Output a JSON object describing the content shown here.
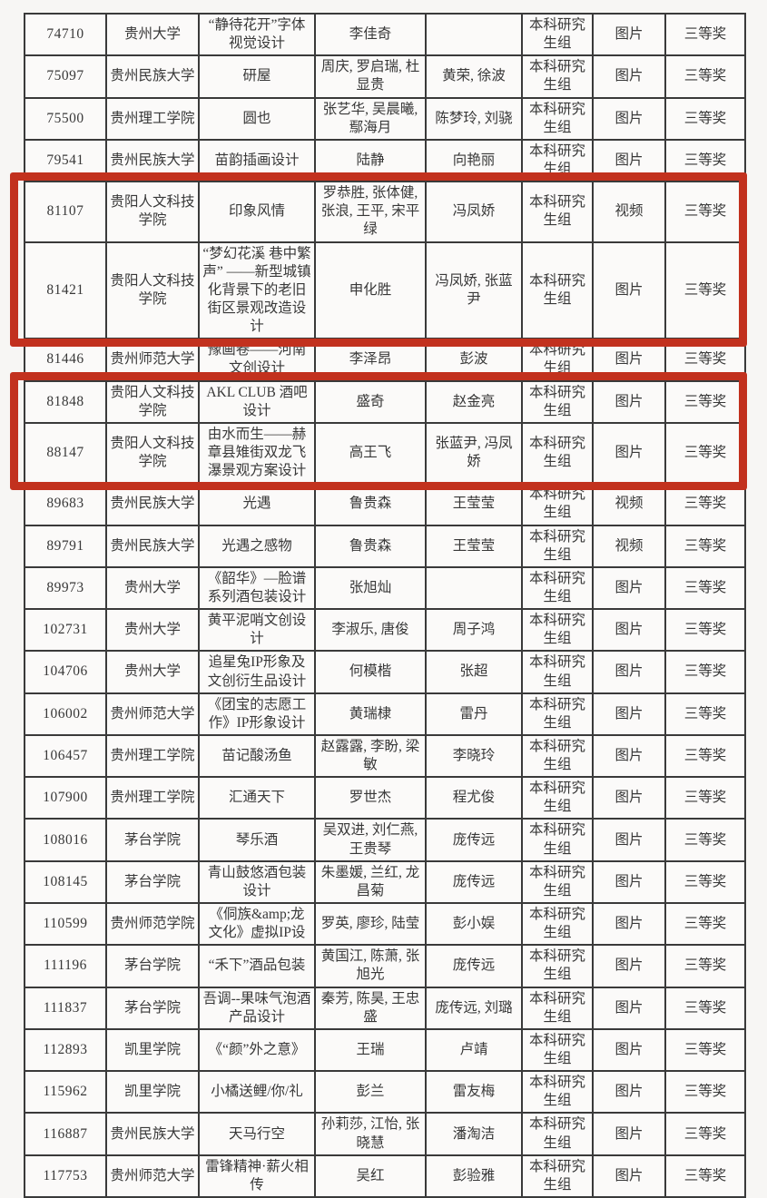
{
  "table": {
    "rows": [
      {
        "id": "74710",
        "school": "贵州大学",
        "title": "“静待花开”字体视觉设计",
        "authors": "李佳奇",
        "advisors": "",
        "group": "本科研究生组",
        "type": "图片",
        "award": "三等奖"
      },
      {
        "id": "75097",
        "school": "贵州民族大学",
        "title": "研屋",
        "authors": "周庆, 罗启瑞, 杜显贵",
        "advisors": "黄荣, 徐波",
        "group": "本科研究生组",
        "type": "图片",
        "award": "三等奖"
      },
      {
        "id": "75500",
        "school": "贵州理工学院",
        "title": "圆也",
        "authors": "张艺华, 吴晨曦, 鄢海月",
        "advisors": "陈梦玲, 刘骁",
        "group": "本科研究生组",
        "type": "图片",
        "award": "三等奖"
      },
      {
        "id": "79541",
        "school": "贵州民族大学",
        "title": "苗韵插画设计",
        "authors": "陆静",
        "advisors": "向艳丽",
        "group": "本科研究生组",
        "type": "图片",
        "award": "三等奖"
      },
      {
        "id": "81107",
        "school": "贵阳人文科技学院",
        "title": "印象风情",
        "authors": "罗恭胜, 张体健, 张浪, 王平, 宋平绿",
        "advisors": "冯凤娇",
        "group": "本科研究生组",
        "type": "视频",
        "award": "三等奖"
      },
      {
        "id": "81421",
        "school": "贵阳人文科技学院",
        "title": "“梦幻花溪 巷中繁声” ——新型城镇化背景下的老旧街区景观改造设计",
        "authors": "申化胜",
        "advisors": "冯凤娇, 张蓝尹",
        "group": "本科研究生组",
        "type": "图片",
        "award": "三等奖"
      },
      {
        "id": "81446",
        "school": "贵州师范大学",
        "title": "豫画卷——河南文创设计",
        "authors": "李泽昂",
        "advisors": "彭波",
        "group": "本科研究生组",
        "type": "图片",
        "award": "三等奖"
      },
      {
        "id": "81848",
        "school": "贵阳人文科技学院",
        "title": "AKL CLUB 酒吧设计",
        "authors": "盛奇",
        "advisors": "赵金亮",
        "group": "本科研究生组",
        "type": "图片",
        "award": "三等奖"
      },
      {
        "id": "88147",
        "school": "贵阳人文科技学院",
        "title": "由水而生——赫章县雉街双龙飞瀑景观方案设计",
        "authors": "高王飞",
        "advisors": "张蓝尹, 冯凤娇",
        "group": "本科研究生组",
        "type": "图片",
        "award": "三等奖"
      },
      {
        "id": "89683",
        "school": "贵州民族大学",
        "title": "光遇",
        "authors": "鲁贵森",
        "advisors": "王莹莹",
        "group": "本科研究生组",
        "type": "视频",
        "award": "三等奖"
      },
      {
        "id": "89791",
        "school": "贵州民族大学",
        "title": "光遇之感物",
        "authors": "鲁贵森",
        "advisors": "王莹莹",
        "group": "本科研究生组",
        "type": "视频",
        "award": "三等奖"
      },
      {
        "id": "89973",
        "school": "贵州大学",
        "title": "《韶华》—脸谱系列酒包装设计",
        "authors": "张旭灿",
        "advisors": "",
        "group": "本科研究生组",
        "type": "图片",
        "award": "三等奖"
      },
      {
        "id": "102731",
        "school": "贵州大学",
        "title": "黄平泥哨文创设计",
        "authors": "李淑乐, 唐俊",
        "advisors": "周子鸿",
        "group": "本科研究生组",
        "type": "图片",
        "award": "三等奖"
      },
      {
        "id": "104706",
        "school": "贵州大学",
        "title": "追星兔IP形象及文创衍生品设计",
        "authors": "何模楷",
        "advisors": "张超",
        "group": "本科研究生组",
        "type": "图片",
        "award": "三等奖"
      },
      {
        "id": "106002",
        "school": "贵州师范大学",
        "title": "《团宝的志愿工作》IP形象设计",
        "authors": "黄瑞棣",
        "advisors": "雷丹",
        "group": "本科研究生组",
        "type": "图片",
        "award": "三等奖"
      },
      {
        "id": "106457",
        "school": "贵州理工学院",
        "title": "苗记酸汤鱼",
        "authors": "赵露露, 李盼, 梁敏",
        "advisors": "李晓玲",
        "group": "本科研究生组",
        "type": "图片",
        "award": "三等奖"
      },
      {
        "id": "107900",
        "school": "贵州理工学院",
        "title": "汇通天下",
        "authors": "罗世杰",
        "advisors": "程尤俊",
        "group": "本科研究生组",
        "type": "图片",
        "award": "三等奖"
      },
      {
        "id": "108016",
        "school": "茅台学院",
        "title": "琴乐酒",
        "authors": "吴双进, 刘仁燕, 王贵琴",
        "advisors": "庞传远",
        "group": "本科研究生组",
        "type": "图片",
        "award": "三等奖"
      },
      {
        "id": "108145",
        "school": "茅台学院",
        "title": "青山鼓悠酒包装设计",
        "authors": "朱墨媛, 兰红, 龙昌菊",
        "advisors": "庞传远",
        "group": "本科研究生组",
        "type": "图片",
        "award": "三等奖"
      },
      {
        "id": "110599",
        "school": "贵州师范学院",
        "title": "《侗族&amp;龙文化》虚拟IP设",
        "authors": "罗英, 廖珍, 陆莹",
        "advisors": "彭小娱",
        "group": "本科研究生组",
        "type": "图片",
        "award": "三等奖"
      },
      {
        "id": "111196",
        "school": "茅台学院",
        "title": "“禾下”酒品包装",
        "authors": "黄国江, 陈萧, 张旭光",
        "advisors": "庞传远",
        "group": "本科研究生组",
        "type": "图片",
        "award": "三等奖"
      },
      {
        "id": "111837",
        "school": "茅台学院",
        "title": "吾调--果味气泡酒产品设计",
        "authors": "秦芳, 陈昊, 王忠盛",
        "advisors": "庞传远, 刘璐",
        "group": "本科研究生组",
        "type": "图片",
        "award": "三等奖"
      },
      {
        "id": "112893",
        "school": "凯里学院",
        "title": "《“颜”外之意》",
        "authors": "王瑞",
        "advisors": "卢靖",
        "group": "本科研究生组",
        "type": "图片",
        "award": "三等奖"
      },
      {
        "id": "115962",
        "school": "凯里学院",
        "title": "小橘送鲤/你/礼",
        "authors": "彭兰",
        "advisors": "雷友梅",
        "group": "本科研究生组",
        "type": "图片",
        "award": "三等奖"
      },
      {
        "id": "116887",
        "school": "贵州民族大学",
        "title": "天马行空",
        "authors": "孙莉莎, 江怡, 张晓慧",
        "advisors": "潘淘洁",
        "group": "本科研究生组",
        "type": "图片",
        "award": "三等奖"
      },
      {
        "id": "117753",
        "school": "贵州师范大学",
        "title": "雷锋精神·薪火相传",
        "authors": "吴红",
        "advisors": "彭验雅",
        "group": "本科研究生组",
        "type": "图片",
        "award": "三等奖"
      }
    ]
  },
  "annotations": {
    "highlight_color": "#c2311e",
    "boxes": [
      {
        "name": "highlight-box-1",
        "row_ids": [
          "81107",
          "81421"
        ]
      },
      {
        "name": "highlight-box-2",
        "row_ids": [
          "81848",
          "88147"
        ]
      }
    ]
  }
}
